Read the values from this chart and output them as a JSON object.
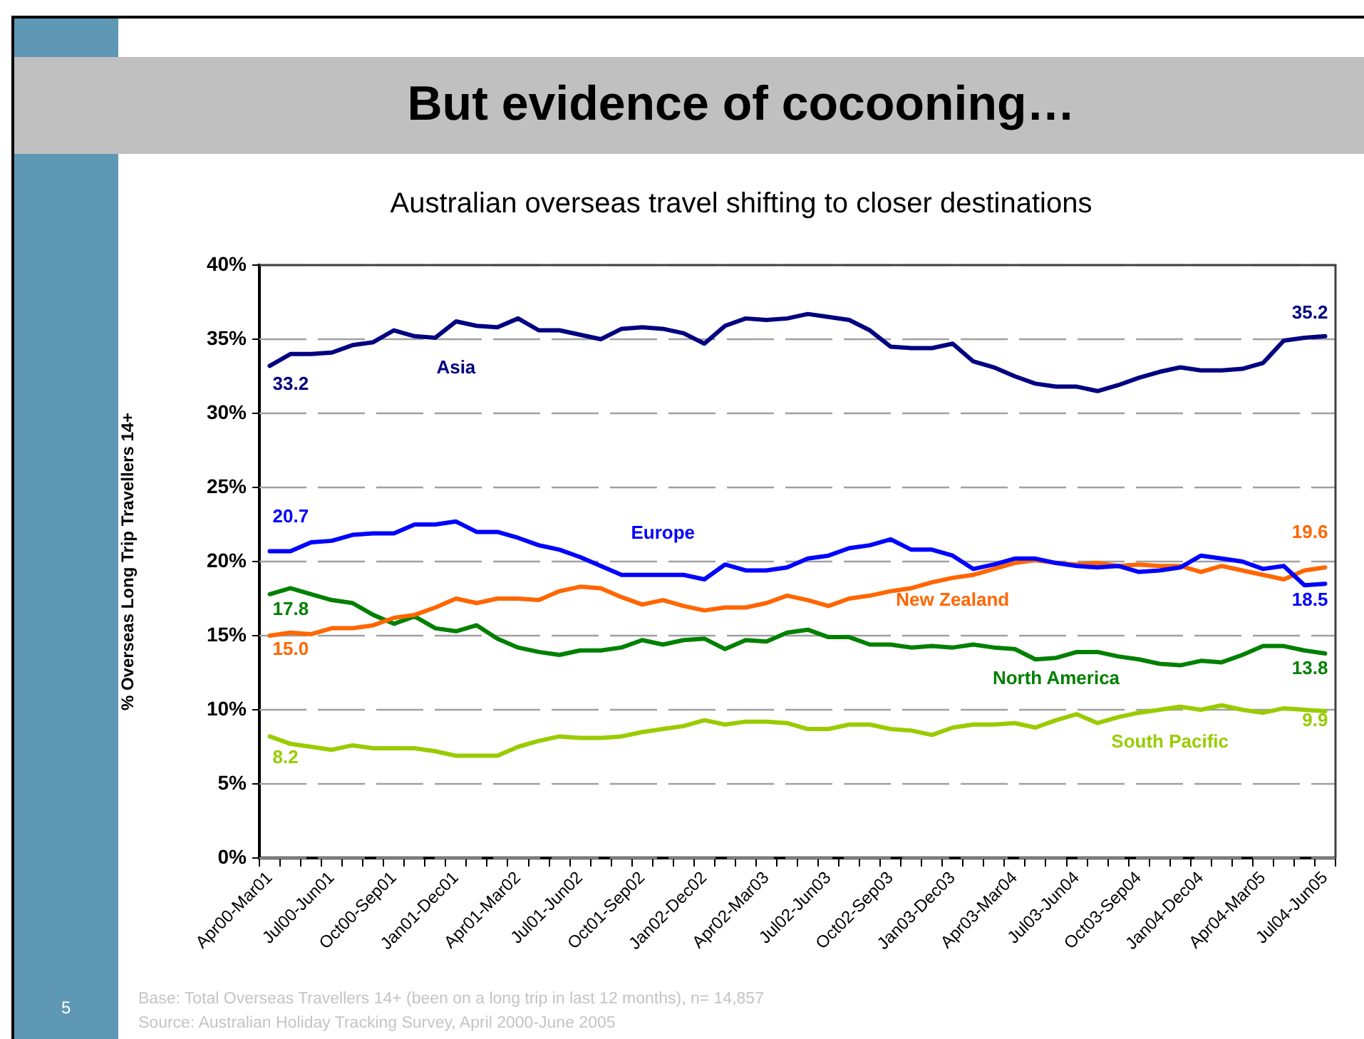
{
  "chart_data": {
    "type": "line",
    "title": "But evidence of cocooning…",
    "subtitle": "Australian overseas travel shifting to closer destinations",
    "ylabel": "% Overseas Long Trip Travellers 14+",
    "categories": [
      "Apr00-Mar01",
      null,
      null,
      "Jul00-Jun01",
      null,
      null,
      "Oct00-Sep01",
      null,
      null,
      "Jan01-Dec01",
      null,
      null,
      "Apr01-Mar02",
      null,
      null,
      "Jul01-Jun02",
      null,
      null,
      "Oct01-Sep02",
      null,
      null,
      "Jan02-Dec02",
      null,
      null,
      "Apr02-Mar03",
      null,
      null,
      "Jul02-Jun03",
      null,
      null,
      "Oct02-Sep03",
      null,
      null,
      "Jan03-Dec03",
      null,
      null,
      "Apr03-Mar04",
      null,
      null,
      "Jul03-Jun04",
      null,
      null,
      "Oct03-Sep04",
      null,
      null,
      "Jan04-Dec04",
      null,
      null,
      "Apr04-Mar05",
      null,
      null,
      "Jul04-Jun05"
    ],
    "series": [
      {
        "name": "Asia",
        "color": "#000080",
        "values": [
          33.2,
          34.0,
          34.0,
          34.1,
          34.6,
          34.8,
          35.6,
          35.2,
          35.1,
          36.2,
          35.9,
          35.8,
          36.4,
          35.6,
          35.6,
          35.3,
          35.0,
          35.7,
          35.8,
          35.7,
          35.4,
          34.7,
          35.9,
          36.4,
          36.3,
          36.4,
          36.7,
          36.5,
          36.3,
          35.6,
          34.5,
          34.4,
          34.4,
          34.7,
          33.5,
          33.1,
          32.5,
          32.0,
          31.8,
          31.8,
          31.5,
          31.9,
          32.4,
          32.8,
          33.1,
          32.9,
          32.9,
          33.0,
          33.4,
          34.9,
          35.1,
          35.2
        ],
        "value_labels": [
          "33.2",
          null,
          null,
          null,
          null,
          null,
          null,
          null,
          null,
          null,
          null,
          null,
          null,
          null,
          null,
          null,
          null,
          null,
          null,
          null,
          null,
          null,
          null,
          null,
          null,
          null,
          null,
          null,
          null,
          null,
          null,
          null,
          null,
          null,
          null,
          null,
          null,
          null,
          null,
          null,
          null,
          null,
          null,
          null,
          null,
          null,
          null,
          null,
          null,
          null,
          null,
          "35.2"
        ]
      },
      {
        "name": "Europe",
        "color": "#0000ff",
        "values": [
          20.7,
          20.7,
          21.3,
          21.4,
          21.8,
          21.9,
          21.9,
          22.5,
          22.5,
          22.7,
          22.0,
          22.0,
          21.6,
          21.1,
          20.8,
          20.3,
          19.7,
          19.1,
          19.1,
          19.1,
          19.1,
          18.8,
          19.8,
          19.4,
          19.4,
          19.6,
          20.2,
          20.4,
          20.9,
          21.1,
          21.5,
          20.8,
          20.8,
          20.4,
          19.5,
          19.8,
          20.2,
          20.2,
          19.9,
          19.7,
          19.6,
          19.7,
          19.3,
          19.4,
          19.6,
          20.4,
          20.2,
          20.0,
          19.5,
          19.7,
          18.4,
          18.5
        ],
        "value_labels": [
          "20.7",
          null,
          null,
          null,
          null,
          null,
          null,
          null,
          null,
          null,
          null,
          null,
          null,
          null,
          null,
          null,
          null,
          null,
          null,
          null,
          null,
          null,
          null,
          null,
          null,
          null,
          null,
          null,
          null,
          null,
          null,
          null,
          null,
          null,
          null,
          null,
          null,
          null,
          null,
          null,
          null,
          null,
          null,
          null,
          null,
          null,
          null,
          null,
          null,
          null,
          null,
          "18.5"
        ]
      },
      {
        "name": "New Zealand",
        "color": "#ff6600",
        "values": [
          15.0,
          15.2,
          15.1,
          15.5,
          15.5,
          15.7,
          16.2,
          16.4,
          16.9,
          17.5,
          17.2,
          17.5,
          17.5,
          17.4,
          18.0,
          18.3,
          18.2,
          17.6,
          17.1,
          17.4,
          17.0,
          16.7,
          16.9,
          16.9,
          17.2,
          17.7,
          17.4,
          17.0,
          17.5,
          17.7,
          18.0,
          18.2,
          18.6,
          18.9,
          19.1,
          19.5,
          19.9,
          20.1,
          19.9,
          19.8,
          19.9,
          19.7,
          19.8,
          19.7,
          19.7,
          19.3,
          19.7,
          19.4,
          19.1,
          18.8,
          19.4,
          19.6
        ],
        "value_labels": [
          "15.0",
          null,
          null,
          null,
          null,
          null,
          null,
          null,
          null,
          null,
          null,
          null,
          null,
          null,
          null,
          null,
          null,
          null,
          null,
          null,
          null,
          null,
          null,
          null,
          null,
          null,
          null,
          null,
          null,
          null,
          null,
          null,
          null,
          null,
          null,
          null,
          null,
          null,
          null,
          null,
          null,
          null,
          null,
          null,
          null,
          null,
          null,
          null,
          null,
          null,
          null,
          "19.6"
        ]
      },
      {
        "name": "North America",
        "color": "#008000",
        "values": [
          17.8,
          18.2,
          17.8,
          17.4,
          17.2,
          16.4,
          15.8,
          16.3,
          15.5,
          15.3,
          15.7,
          14.8,
          14.2,
          13.9,
          13.7,
          14.0,
          14.0,
          14.2,
          14.7,
          14.4,
          14.7,
          14.8,
          14.1,
          14.7,
          14.6,
          15.2,
          15.4,
          14.9,
          14.9,
          14.4,
          14.4,
          14.2,
          14.3,
          14.2,
          14.4,
          14.2,
          14.1,
          13.4,
          13.5,
          13.9,
          13.9,
          13.6,
          13.4,
          13.1,
          13.0,
          13.3,
          13.2,
          13.7,
          14.3,
          14.3,
          14.0,
          13.8
        ],
        "value_labels": [
          "17.8",
          null,
          null,
          null,
          null,
          null,
          null,
          null,
          null,
          null,
          null,
          null,
          null,
          null,
          null,
          null,
          null,
          null,
          null,
          null,
          null,
          null,
          null,
          null,
          null,
          null,
          null,
          null,
          null,
          null,
          null,
          null,
          null,
          null,
          null,
          null,
          null,
          null,
          null,
          null,
          null,
          null,
          null,
          null,
          null,
          null,
          null,
          null,
          null,
          null,
          null,
          "13.8"
        ]
      },
      {
        "name": "South Pacific",
        "color": "#99cc00",
        "values": [
          8.2,
          7.7,
          7.5,
          7.3,
          7.6,
          7.4,
          7.4,
          7.4,
          7.2,
          6.9,
          6.9,
          6.9,
          7.5,
          7.9,
          8.2,
          8.1,
          8.1,
          8.2,
          8.5,
          8.7,
          8.9,
          9.3,
          9.0,
          9.2,
          9.2,
          9.1,
          8.7,
          8.7,
          9.0,
          9.0,
          8.7,
          8.6,
          8.3,
          8.8,
          9.0,
          9.0,
          9.1,
          8.8,
          9.3,
          9.7,
          9.1,
          9.5,
          9.8,
          10.0,
          10.2,
          10.0,
          10.3,
          10.0,
          9.8,
          10.1,
          10.0,
          9.9
        ],
        "value_labels": [
          "8.2",
          null,
          null,
          null,
          null,
          null,
          null,
          null,
          null,
          null,
          null,
          null,
          null,
          null,
          null,
          null,
          null,
          null,
          null,
          null,
          null,
          null,
          null,
          null,
          null,
          null,
          null,
          null,
          null,
          null,
          null,
          null,
          null,
          null,
          null,
          null,
          null,
          null,
          null,
          null,
          null,
          null,
          null,
          null,
          null,
          null,
          null,
          null,
          null,
          null,
          null,
          "9.9"
        ]
      }
    ],
    "ylim": [
      0,
      40
    ],
    "yticks": [
      {
        "value": 0,
        "label": "0%"
      },
      {
        "value": 5,
        "label": "5%"
      },
      {
        "value": 10,
        "label": "10%"
      },
      {
        "value": 15,
        "label": "15%"
      },
      {
        "value": 20,
        "label": "20%"
      },
      {
        "value": 25,
        "label": "25%"
      },
      {
        "value": 30,
        "label": "30%"
      },
      {
        "value": 35,
        "label": "35%"
      },
      {
        "value": 40,
        "label": "40%"
      }
    ],
    "grid": "y",
    "marker": "none",
    "line_style": "solid",
    "annotations": [
      "Base: Total Overseas Travellers 14+ (been on a long trip in last 12 months), n= 14,857",
      "Source: Australian Holiday Tracking Survey, April 2000-June 2005",
      "5"
    ]
  }
}
